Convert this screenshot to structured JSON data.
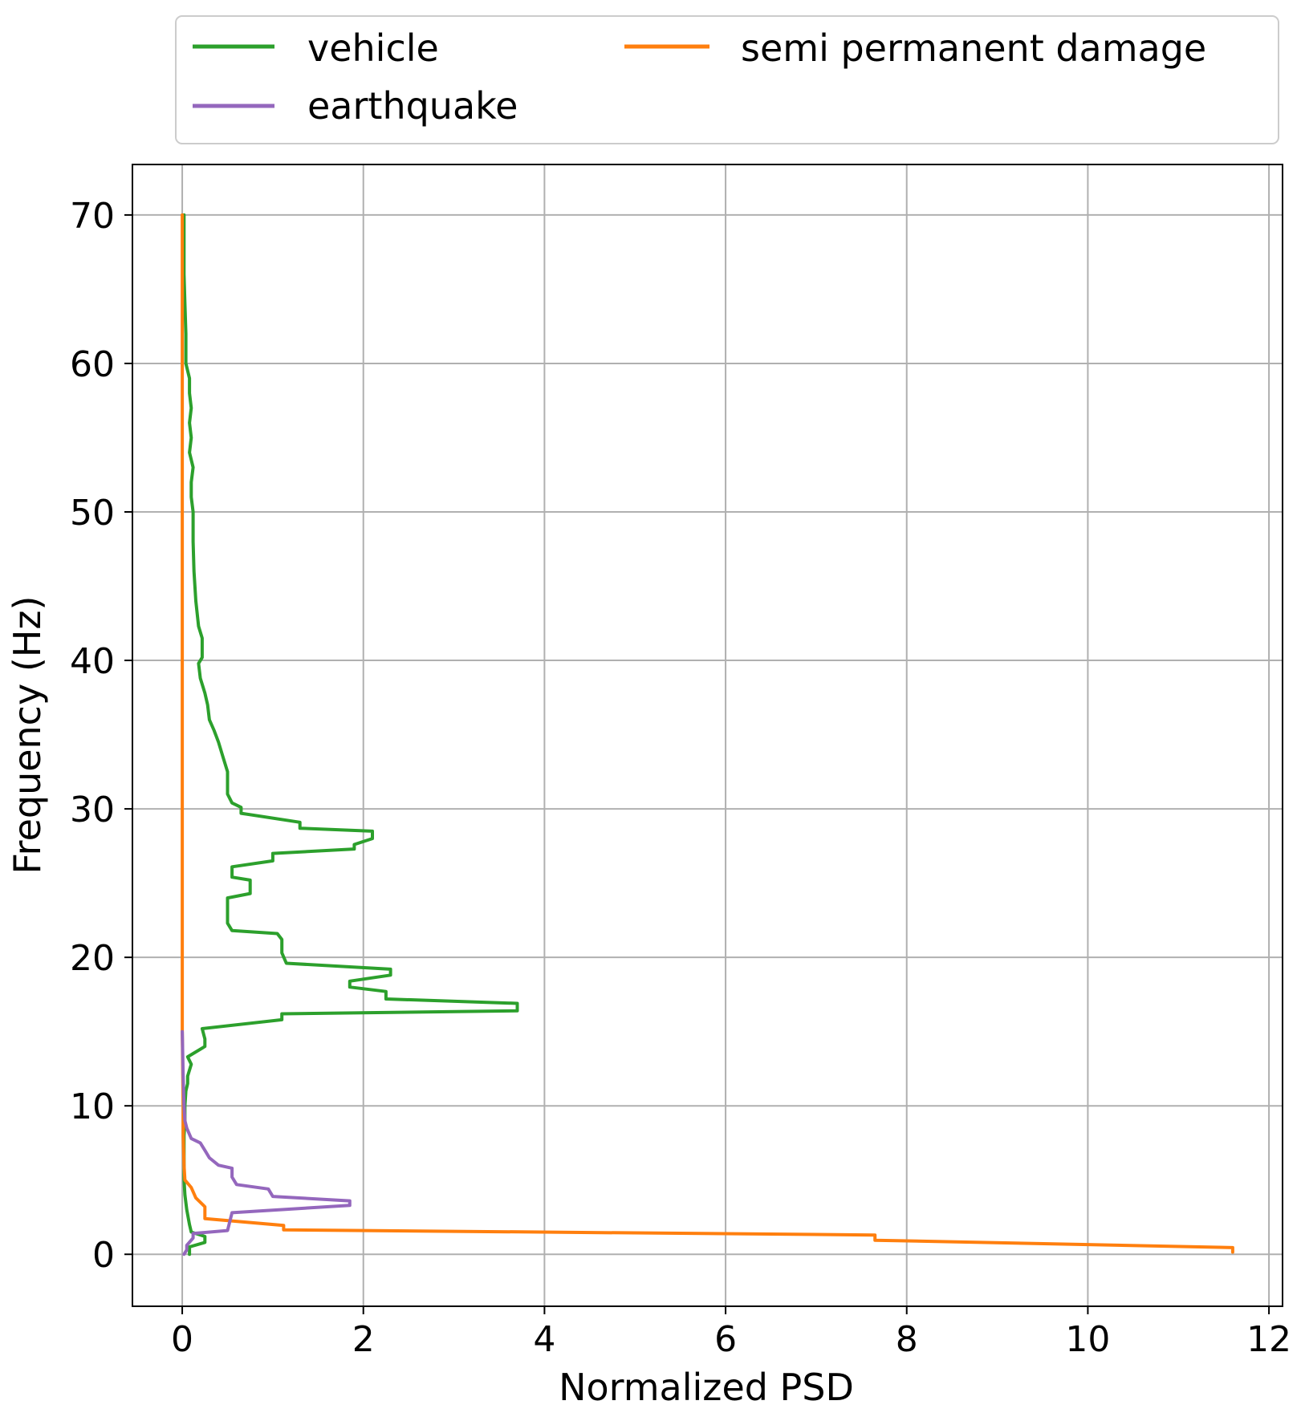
{
  "chart_data": {
    "type": "line",
    "title": "",
    "xlabel": "Normalized PSD",
    "ylabel": "Frequency (Hz)",
    "xlim": [
      -0.55,
      12.15
    ],
    "ylim": [
      -3.5,
      73.4
    ],
    "xticks": [
      0,
      2,
      4,
      6,
      8,
      10,
      12
    ],
    "yticks": [
      0,
      10,
      20,
      30,
      40,
      50,
      60,
      70
    ],
    "grid": true,
    "legend_position": "top, above plot, 2 columns",
    "series": [
      {
        "name": "vehicle",
        "color": "#2ca02c",
        "points": [
          [
            0.08,
            0.0
          ],
          [
            0.08,
            0.5
          ],
          [
            0.25,
            0.8
          ],
          [
            0.25,
            1.2
          ],
          [
            0.1,
            1.5
          ],
          [
            0.08,
            2.0
          ],
          [
            0.05,
            3.0
          ],
          [
            0.03,
            4.0
          ],
          [
            0.02,
            5.0
          ],
          [
            0.02,
            6.0
          ],
          [
            0.02,
            7.0
          ],
          [
            0.02,
            8.0
          ],
          [
            0.03,
            9.0
          ],
          [
            0.03,
            10.0
          ],
          [
            0.04,
            11.0
          ],
          [
            0.06,
            11.5
          ],
          [
            0.06,
            12.0
          ],
          [
            0.1,
            12.8
          ],
          [
            0.06,
            13.3
          ],
          [
            0.25,
            14.0
          ],
          [
            0.25,
            14.5
          ],
          [
            0.22,
            15.2
          ],
          [
            1.1,
            15.8
          ],
          [
            1.1,
            16.2
          ],
          [
            3.7,
            16.4
          ],
          [
            3.7,
            16.9
          ],
          [
            2.25,
            17.2
          ],
          [
            2.25,
            17.7
          ],
          [
            1.85,
            18.0
          ],
          [
            1.85,
            18.4
          ],
          [
            2.3,
            18.8
          ],
          [
            2.3,
            19.2
          ],
          [
            1.15,
            19.6
          ],
          [
            1.1,
            20.3
          ],
          [
            1.1,
            21.2
          ],
          [
            1.05,
            21.6
          ],
          [
            0.55,
            21.8
          ],
          [
            0.5,
            22.3
          ],
          [
            0.5,
            24.0
          ],
          [
            0.75,
            24.3
          ],
          [
            0.75,
            25.2
          ],
          [
            0.55,
            25.4
          ],
          [
            0.55,
            26.1
          ],
          [
            1.0,
            26.5
          ],
          [
            1.0,
            27.0
          ],
          [
            1.9,
            27.3
          ],
          [
            1.9,
            27.6
          ],
          [
            2.1,
            28.0
          ],
          [
            2.1,
            28.5
          ],
          [
            1.3,
            28.7
          ],
          [
            1.3,
            29.1
          ],
          [
            0.65,
            29.7
          ],
          [
            0.65,
            30.1
          ],
          [
            0.55,
            30.4
          ],
          [
            0.5,
            31.0
          ],
          [
            0.5,
            32.5
          ],
          [
            0.45,
            33.5
          ],
          [
            0.4,
            34.5
          ],
          [
            0.35,
            35.3
          ],
          [
            0.3,
            36.0
          ],
          [
            0.28,
            37.0
          ],
          [
            0.25,
            37.8
          ],
          [
            0.2,
            38.8
          ],
          [
            0.18,
            39.8
          ],
          [
            0.22,
            40.2
          ],
          [
            0.22,
            41.5
          ],
          [
            0.18,
            42.3
          ],
          [
            0.15,
            44.0
          ],
          [
            0.13,
            46.0
          ],
          [
            0.12,
            48.0
          ],
          [
            0.12,
            50.0
          ],
          [
            0.1,
            51.0
          ],
          [
            0.1,
            52.0
          ],
          [
            0.12,
            53.0
          ],
          [
            0.08,
            54.0
          ],
          [
            0.1,
            55.0
          ],
          [
            0.08,
            56.0
          ],
          [
            0.1,
            57.0
          ],
          [
            0.08,
            58.0
          ],
          [
            0.08,
            59.0
          ],
          [
            0.04,
            60.0
          ],
          [
            0.04,
            62.0
          ],
          [
            0.03,
            64.0
          ],
          [
            0.02,
            66.0
          ],
          [
            0.02,
            68.0
          ],
          [
            0.02,
            70.0
          ]
        ]
      },
      {
        "name": "semi permanent damage",
        "color": "#ff7f0e",
        "points": [
          [
            11.6,
            0.15
          ],
          [
            11.6,
            0.45
          ],
          [
            7.65,
            0.95
          ],
          [
            7.65,
            1.3
          ],
          [
            1.12,
            1.65
          ],
          [
            1.12,
            1.95
          ],
          [
            0.25,
            2.4
          ],
          [
            0.25,
            3.2
          ],
          [
            0.15,
            3.8
          ],
          [
            0.1,
            4.5
          ],
          [
            0.03,
            5.0
          ],
          [
            0.02,
            6.0
          ],
          [
            0.01,
            8.0
          ],
          [
            0.01,
            10.0
          ],
          [
            0.0,
            15.0
          ],
          [
            0.0,
            20.0
          ],
          [
            0.0,
            30.0
          ],
          [
            0.0,
            40.0
          ],
          [
            0.0,
            50.0
          ],
          [
            0.0,
            60.0
          ],
          [
            0.0,
            70.0
          ]
        ]
      },
      {
        "name": "earthquake",
        "color": "#9467bd",
        "points": [
          [
            0.02,
            0.0
          ],
          [
            0.05,
            0.3
          ],
          [
            0.05,
            0.6
          ],
          [
            0.12,
            1.1
          ],
          [
            0.12,
            1.4
          ],
          [
            0.5,
            1.6
          ],
          [
            0.55,
            2.8
          ],
          [
            1.85,
            3.3
          ],
          [
            1.85,
            3.6
          ],
          [
            1.0,
            3.9
          ],
          [
            0.95,
            4.4
          ],
          [
            0.6,
            4.7
          ],
          [
            0.55,
            5.2
          ],
          [
            0.55,
            5.8
          ],
          [
            0.4,
            6.0
          ],
          [
            0.3,
            6.5
          ],
          [
            0.25,
            7.0
          ],
          [
            0.2,
            7.5
          ],
          [
            0.1,
            7.8
          ],
          [
            0.05,
            8.5
          ],
          [
            0.03,
            9.0
          ],
          [
            0.02,
            10.0
          ],
          [
            0.01,
            12.0
          ],
          [
            0.0,
            15.0
          ]
        ]
      }
    ]
  },
  "legend": {
    "items": [
      {
        "label": "vehicle",
        "color": "#2ca02c"
      },
      {
        "label": "earthquake",
        "color": "#9467bd"
      },
      {
        "label": "semi permanent damage",
        "color": "#ff7f0e"
      }
    ]
  }
}
